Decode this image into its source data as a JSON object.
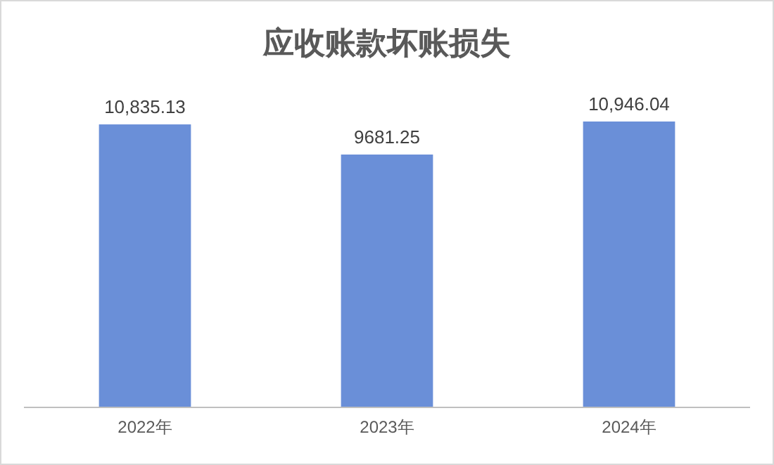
{
  "chart_data": {
    "type": "bar",
    "title": "应收账款坏账损失",
    "categories": [
      "2022年",
      "2023年",
      "2024年"
    ],
    "values": [
      10835.13,
      9681.25,
      10946.04
    ],
    "value_labels": [
      "10,835.13",
      "9681.25",
      "10,946.04"
    ],
    "color": "#6a8fd8"
  }
}
